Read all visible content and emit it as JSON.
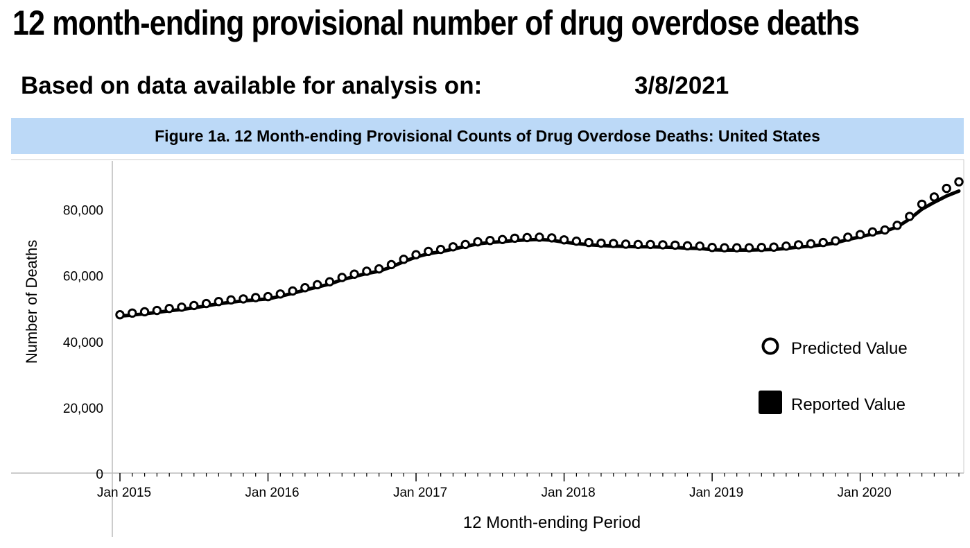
{
  "header": {
    "title": "12 month-ending provisional number of drug overdose deaths",
    "basis_label": "Based on data available for analysis on:",
    "basis_date": "3/8/2021"
  },
  "figure": {
    "title": "Figure 1a. 12 Month-ending Provisional Counts of Drug Overdose Deaths: United States"
  },
  "chart_data": {
    "type": "line",
    "title": "Figure 1a. 12 Month-ending Provisional Counts of Drug Overdose Deaths: United States",
    "xlabel": "12 Month-ending Period",
    "ylabel": "Number of Deaths",
    "ylim": [
      0,
      90000
    ],
    "xlim": [
      "2015-01",
      "2020-09"
    ],
    "y_ticks": [
      0,
      20000,
      40000,
      60000,
      80000
    ],
    "y_tick_labels": [
      "0",
      "20,000",
      "40,000",
      "60,000",
      "80,000"
    ],
    "x_tick_labels": [
      "Jan 2015",
      "Jan 2016",
      "Jan 2017",
      "Jan 2018",
      "Jan 2019",
      "Jan 2020"
    ],
    "x_tick_dates": [
      "2015-01",
      "2016-01",
      "2017-01",
      "2018-01",
      "2019-01",
      "2020-01"
    ],
    "grid": false,
    "legend_position": "bottom-right",
    "x": [
      "2015-01",
      "2015-02",
      "2015-03",
      "2015-04",
      "2015-05",
      "2015-06",
      "2015-07",
      "2015-08",
      "2015-09",
      "2015-10",
      "2015-11",
      "2015-12",
      "2016-01",
      "2016-02",
      "2016-03",
      "2016-04",
      "2016-05",
      "2016-06",
      "2016-07",
      "2016-08",
      "2016-09",
      "2016-10",
      "2016-11",
      "2016-12",
      "2017-01",
      "2017-02",
      "2017-03",
      "2017-04",
      "2017-05",
      "2017-06",
      "2017-07",
      "2017-08",
      "2017-09",
      "2017-10",
      "2017-11",
      "2017-12",
      "2018-01",
      "2018-02",
      "2018-03",
      "2018-04",
      "2018-05",
      "2018-06",
      "2018-07",
      "2018-08",
      "2018-09",
      "2018-10",
      "2018-11",
      "2018-12",
      "2019-01",
      "2019-02",
      "2019-03",
      "2019-04",
      "2019-05",
      "2019-06",
      "2019-07",
      "2019-08",
      "2019-09",
      "2019-10",
      "2019-11",
      "2019-12",
      "2020-01",
      "2020-02",
      "2020-03",
      "2020-04",
      "2020-05",
      "2020-06",
      "2020-07",
      "2020-08",
      "2020-09"
    ],
    "series": [
      {
        "name": "Predicted Value",
        "marker": "open-circle",
        "color": "#000000",
        "values": [
          48000,
          48500,
          48900,
          49300,
          49900,
          50300,
          50800,
          51400,
          52000,
          52500,
          52800,
          53200,
          53500,
          54300,
          55200,
          56200,
          57100,
          58000,
          59300,
          60300,
          61200,
          61900,
          63200,
          64800,
          66200,
          67200,
          67800,
          68600,
          69300,
          70100,
          70500,
          70800,
          71200,
          71400,
          71500,
          71300,
          70700,
          70300,
          69900,
          69700,
          69600,
          69400,
          69300,
          69300,
          69200,
          69100,
          68900,
          68800,
          68400,
          68300,
          68300,
          68300,
          68400,
          68500,
          68800,
          69200,
          69500,
          69900,
          70400,
          71500,
          72300,
          73100,
          73700,
          75100,
          77800,
          81500,
          83700,
          86300,
          88300
        ]
      },
      {
        "name": "Reported Value",
        "marker": "solid-line",
        "color": "#000000",
        "values": [
          47600,
          47900,
          48300,
          48700,
          49200,
          49600,
          50100,
          50700,
          51300,
          51800,
          52200,
          52500,
          52800,
          53600,
          54500,
          55500,
          56400,
          57300,
          58600,
          59600,
          60500,
          61200,
          62500,
          64100,
          65500,
          66500,
          67100,
          67900,
          68700,
          69500,
          69900,
          70200,
          70500,
          70700,
          70800,
          70600,
          70000,
          69600,
          69200,
          69000,
          68800,
          68700,
          68600,
          68600,
          68500,
          68400,
          68200,
          68100,
          67700,
          67600,
          67600,
          67600,
          67700,
          67800,
          68100,
          68500,
          68800,
          69200,
          69800,
          70800,
          71600,
          72500,
          73300,
          74600,
          77000,
          80000,
          82100,
          84000,
          85500
        ]
      }
    ]
  }
}
